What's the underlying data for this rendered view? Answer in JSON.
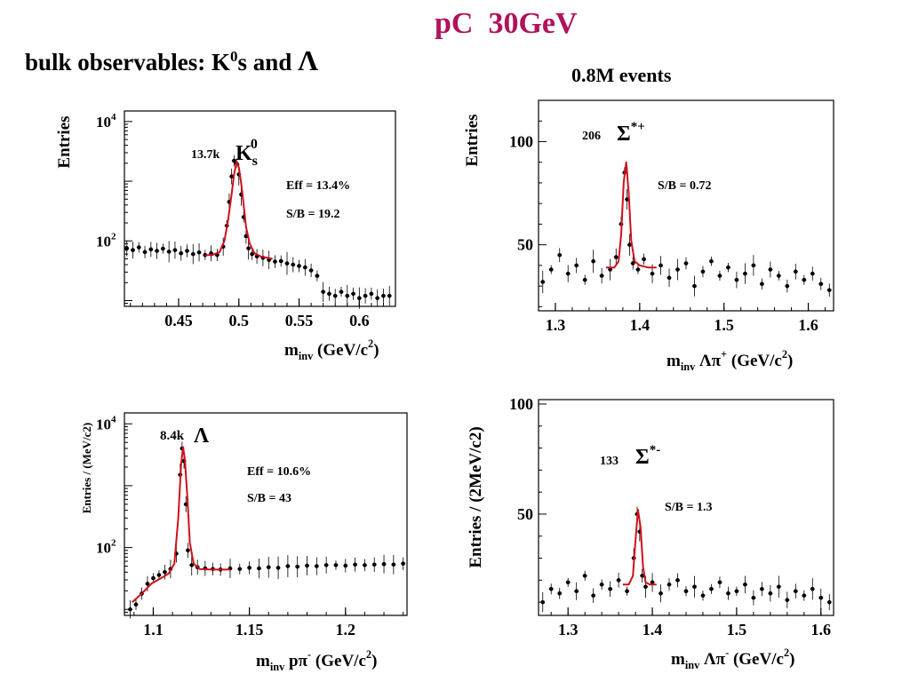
{
  "slide": {
    "title": "pC  30GeV",
    "subtitle_prefix": "bulk observables: K",
    "subtitle_sup": "0",
    "subtitle_mid": "s and ",
    "subtitle_lambda": "Λ",
    "events": "0.8M events"
  },
  "colors": {
    "title": "#b0125b",
    "fit": "#d0101a",
    "points": "#000000"
  },
  "chart_data": [
    {
      "id": "k0s",
      "type": "scatter",
      "title": "",
      "ylabel": "Entries",
      "xlabel_parts": [
        "m",
        "inv",
        " (GeV/c",
        "2",
        ")"
      ],
      "ylog": true,
      "xlim": [
        0.405,
        0.63
      ],
      "ylim": [
        8,
        15000
      ],
      "x_ticks": [
        0.45,
        0.5,
        0.55,
        0.6
      ],
      "x_tick_labels": [
        "0.45",
        "0.5",
        "0.55",
        "0.6"
      ],
      "y_ticks": [
        100,
        10000
      ],
      "y_tick_labels": [
        "10^2",
        "10^4"
      ],
      "grid": false,
      "annotations": {
        "yield": "13.7k",
        "particle": "K",
        "particle_sub": "s",
        "particle_sup": "0",
        "eff": "Eff = 13.4%",
        "sb": "S/B = 19.2"
      },
      "data": {
        "x": [
          0.407,
          0.412,
          0.417,
          0.422,
          0.427,
          0.432,
          0.437,
          0.442,
          0.447,
          0.452,
          0.457,
          0.462,
          0.467,
          0.472,
          0.477,
          0.482,
          0.487,
          0.49,
          0.492,
          0.494,
          0.496,
          0.498,
          0.5,
          0.502,
          0.504,
          0.506,
          0.508,
          0.511,
          0.515,
          0.52,
          0.525,
          0.53,
          0.535,
          0.54,
          0.545,
          0.55,
          0.555,
          0.56,
          0.565,
          0.57,
          0.575,
          0.58,
          0.585,
          0.59,
          0.595,
          0.6,
          0.605,
          0.61,
          0.615,
          0.62,
          0.625
        ],
        "y": [
          75,
          70,
          78,
          65,
          72,
          68,
          74,
          66,
          70,
          62,
          68,
          60,
          64,
          58,
          62,
          58,
          80,
          180,
          450,
          1200,
          2200,
          2000,
          1300,
          600,
          250,
          120,
          75,
          60,
          55,
          52,
          48,
          45,
          46,
          42,
          40,
          38,
          36,
          32,
          26,
          14,
          13,
          12,
          14,
          12,
          13,
          11,
          12,
          13,
          11,
          12,
          12
        ],
        "fit": {
          "x": [
            0.472,
            0.478,
            0.484,
            0.488,
            0.491,
            0.494,
            0.496,
            0.498,
            0.5,
            0.502,
            0.504,
            0.506,
            0.509,
            0.513,
            0.518,
            0.524,
            0.528
          ],
          "y": [
            58,
            58,
            65,
            100,
            220,
            600,
            1300,
            2100,
            1700,
            900,
            400,
            170,
            90,
            62,
            55,
            52,
            50
          ]
        }
      }
    },
    {
      "id": "lambda",
      "type": "scatter",
      "title": "",
      "ylabel": "Entries / (MeV/c2)",
      "xlabel_parts": [
        "m",
        "inv",
        " pπ",
        "-",
        " (GeV/c",
        "2",
        ")"
      ],
      "ylog": true,
      "xlim": [
        1.085,
        1.232
      ],
      "ylim": [
        8,
        15000
      ],
      "x_ticks": [
        1.1,
        1.15,
        1.2
      ],
      "x_tick_labels": [
        "1.1",
        "1.15",
        "1.2"
      ],
      "y_ticks": [
        100,
        10000
      ],
      "y_tick_labels": [
        "10^2",
        "10^4"
      ],
      "grid": false,
      "annotations": {
        "yield": "8.4k",
        "particle": "Λ",
        "eff": "Eff = 10.6%",
        "sb": "S/B = 43"
      },
      "data": {
        "x": [
          1.088,
          1.091,
          1.094,
          1.097,
          1.1,
          1.103,
          1.106,
          1.109,
          1.112,
          1.114,
          1.115,
          1.116,
          1.117,
          1.118,
          1.12,
          1.123,
          1.127,
          1.131,
          1.135,
          1.14,
          1.145,
          1.15,
          1.155,
          1.16,
          1.165,
          1.17,
          1.175,
          1.18,
          1.185,
          1.19,
          1.195,
          1.2,
          1.205,
          1.21,
          1.215,
          1.22,
          1.225,
          1.23
        ],
        "y": [
          10,
          12,
          18,
          26,
          32,
          36,
          40,
          45,
          80,
          1500,
          4000,
          2500,
          500,
          90,
          52,
          48,
          46,
          45,
          44,
          46,
          45,
          47,
          46,
          48,
          47,
          50,
          49,
          51,
          50,
          52,
          52,
          51,
          53,
          52,
          53,
          54,
          53,
          55
        ],
        "fit": {
          "x": [
            1.089,
            1.094,
            1.099,
            1.104,
            1.108,
            1.111,
            1.113,
            1.1145,
            1.1155,
            1.1165,
            1.1178,
            1.119,
            1.121,
            1.124,
            1.13,
            1.14
          ],
          "y": [
            13,
            18,
            26,
            32,
            38,
            55,
            300,
            2200,
            4200,
            2600,
            600,
            120,
            55,
            45,
            44,
            44
          ]
        }
      }
    },
    {
      "id": "sigma-plus",
      "type": "scatter",
      "title": "",
      "ylabel": "Entries",
      "xlabel_parts": [
        "m",
        "inv",
        " Λπ",
        "+",
        " (GeV/c",
        "2",
        ")"
      ],
      "ylog": false,
      "xlim": [
        1.28,
        1.63
      ],
      "ylim": [
        18,
        120
      ],
      "x_ticks": [
        1.3,
        1.4,
        1.5,
        1.6
      ],
      "x_tick_labels": [
        "1.3",
        "1.4",
        "1.5",
        "1.6"
      ],
      "y_ticks": [
        50,
        100
      ],
      "y_tick_labels": [
        "50",
        "100"
      ],
      "grid": false,
      "annotations": {
        "yield": "206",
        "particle": "Σ",
        "particle_sup": "*+",
        "sb": "S/B = 0.72"
      },
      "data": {
        "x": [
          1.285,
          1.295,
          1.305,
          1.315,
          1.325,
          1.335,
          1.345,
          1.355,
          1.365,
          1.372,
          1.378,
          1.382,
          1.385,
          1.388,
          1.392,
          1.398,
          1.405,
          1.415,
          1.425,
          1.435,
          1.445,
          1.455,
          1.465,
          1.475,
          1.485,
          1.495,
          1.505,
          1.515,
          1.525,
          1.535,
          1.545,
          1.555,
          1.565,
          1.575,
          1.585,
          1.595,
          1.605,
          1.615,
          1.625
        ],
        "y": [
          32,
          38,
          45,
          36,
          40,
          33,
          42,
          35,
          38,
          44,
          60,
          85,
          72,
          50,
          41,
          38,
          43,
          36,
          40,
          34,
          38,
          41,
          30,
          37,
          42,
          35,
          39,
          33,
          36,
          40,
          31,
          38,
          35,
          30,
          37,
          33,
          36,
          31,
          28
        ],
        "fit": {
          "x": [
            1.36,
            1.37,
            1.375,
            1.378,
            1.381,
            1.384,
            1.387,
            1.39,
            1.394,
            1.4,
            1.41,
            1.42
          ],
          "y": [
            39,
            39,
            42,
            55,
            80,
            90,
            75,
            52,
            42,
            40,
            39,
            39
          ]
        }
      }
    },
    {
      "id": "sigma-minus",
      "type": "scatter",
      "title": "",
      "ylabel": "Entries / (2MeV/c2)",
      "xlabel_parts": [
        "m",
        "inv",
        " Λπ",
        "-",
        " (GeV/c",
        "2",
        ")"
      ],
      "ylog": false,
      "xlim": [
        1.265,
        1.615
      ],
      "ylim": [
        4,
        102
      ],
      "x_ticks": [
        1.3,
        1.4,
        1.5,
        1.6
      ],
      "x_tick_labels": [
        "1.3",
        "1.4",
        "1.5",
        "1.6"
      ],
      "y_ticks": [
        50,
        100
      ],
      "y_tick_labels": [
        "50",
        "100"
      ],
      "grid": false,
      "annotations": {
        "yield": "133",
        "particle": "Σ",
        "particle_sup": "*-",
        "sb": "S/B = 1.3"
      },
      "data": {
        "x": [
          1.27,
          1.28,
          1.29,
          1.3,
          1.31,
          1.32,
          1.33,
          1.34,
          1.35,
          1.36,
          1.37,
          1.378,
          1.382,
          1.385,
          1.388,
          1.392,
          1.4,
          1.41,
          1.42,
          1.43,
          1.44,
          1.45,
          1.46,
          1.47,
          1.48,
          1.49,
          1.5,
          1.51,
          1.52,
          1.53,
          1.54,
          1.55,
          1.56,
          1.57,
          1.58,
          1.59,
          1.6,
          1.61
        ],
        "y": [
          10,
          16,
          14,
          19,
          15,
          22,
          13,
          18,
          16,
          20,
          15,
          30,
          50,
          42,
          22,
          17,
          19,
          14,
          18,
          20,
          15,
          17,
          13,
          16,
          19,
          14,
          15,
          18,
          12,
          16,
          14,
          17,
          11,
          15,
          13,
          16,
          12,
          10
        ],
        "fit": {
          "x": [
            1.365,
            1.372,
            1.377,
            1.38,
            1.383,
            1.386,
            1.389,
            1.392,
            1.397,
            1.405
          ],
          "y": [
            18,
            18,
            22,
            38,
            52,
            44,
            26,
            19,
            18,
            18
          ]
        }
      }
    }
  ]
}
